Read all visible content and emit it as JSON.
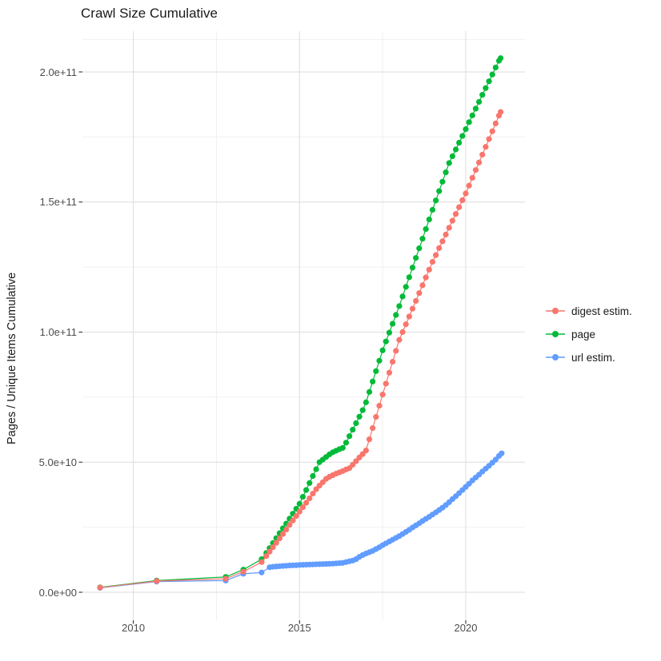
{
  "title": "Crawl Size Cumulative",
  "y_axis_label": "Pages / Unique Items Cumulative",
  "legend": {
    "position": "right",
    "items": [
      {
        "label": "digest estim.",
        "color": "#F8766D"
      },
      {
        "label": "page",
        "color": "#00BA38"
      },
      {
        "label": "url estim.",
        "color": "#619CFF"
      }
    ]
  },
  "chart_data": {
    "type": "line",
    "title": "Crawl Size Cumulative",
    "xlabel": "",
    "ylabel": "Pages / Unique Items Cumulative",
    "grid": true,
    "legend_position": "right",
    "value_unit": "billions (1e9) of pages / unique items",
    "xlim": [
      2008.5,
      2021.8
    ],
    "ylim_billions": [
      -10.7,
      215.6
    ],
    "x_ticks": {
      "labels": [
        "2010",
        "2015",
        "2020"
      ],
      "years": [
        2010,
        2015,
        2020
      ]
    },
    "x_minor_years": [
      2012.5,
      2017.5
    ],
    "y_ticks": {
      "labels": [
        "0.0e+00",
        "5.0e+10",
        "1.0e+11",
        "1.5e+11",
        "2.0e+11"
      ],
      "values_billions": [
        0,
        50,
        100,
        150,
        200
      ]
    },
    "y_minor_billions": [
      25,
      75,
      125,
      175,
      212.5
    ],
    "series": [
      {
        "name": "url estim.",
        "color": "#619CFF",
        "points": [
          [
            2009.0,
            1.7
          ],
          [
            2010.7,
            4.1
          ],
          [
            2012.78,
            4.5
          ],
          [
            2013.31,
            7.1
          ],
          [
            2013.86,
            7.6
          ],
          [
            2014.1,
            9.6
          ],
          [
            2014.2,
            9.8
          ],
          [
            2014.3,
            9.9
          ],
          [
            2014.4,
            10.0
          ],
          [
            2014.5,
            10.1
          ],
          [
            2014.6,
            10.2
          ],
          [
            2014.7,
            10.3
          ],
          [
            2014.8,
            10.35
          ],
          [
            2014.9,
            10.4
          ],
          [
            2015.0,
            10.5
          ],
          [
            2015.1,
            10.55
          ],
          [
            2015.2,
            10.6
          ],
          [
            2015.3,
            10.65
          ],
          [
            2015.4,
            10.7
          ],
          [
            2015.5,
            10.75
          ],
          [
            2015.6,
            10.8
          ],
          [
            2015.7,
            10.85
          ],
          [
            2015.8,
            10.9
          ],
          [
            2015.9,
            10.95
          ],
          [
            2016.0,
            11.0
          ],
          [
            2016.1,
            11.1
          ],
          [
            2016.2,
            11.2
          ],
          [
            2016.3,
            11.3
          ],
          [
            2016.4,
            11.6
          ],
          [
            2016.5,
            11.9
          ],
          [
            2016.6,
            12.2
          ],
          [
            2016.7,
            12.7
          ],
          [
            2016.8,
            13.6
          ],
          [
            2016.9,
            14.3
          ],
          [
            2017.0,
            14.9
          ],
          [
            2017.1,
            15.4
          ],
          [
            2017.2,
            15.9
          ],
          [
            2017.3,
            16.6
          ],
          [
            2017.4,
            17.3
          ],
          [
            2017.5,
            18.1
          ],
          [
            2017.6,
            18.8
          ],
          [
            2017.7,
            19.5
          ],
          [
            2017.8,
            20.2
          ],
          [
            2017.9,
            20.9
          ],
          [
            2018.0,
            21.6
          ],
          [
            2018.1,
            22.4
          ],
          [
            2018.2,
            23.2
          ],
          [
            2018.3,
            24.0
          ],
          [
            2018.4,
            24.9
          ],
          [
            2018.5,
            25.7
          ],
          [
            2018.6,
            26.5
          ],
          [
            2018.7,
            27.4
          ],
          [
            2018.8,
            28.2
          ],
          [
            2018.9,
            29.0
          ],
          [
            2019.0,
            29.9
          ],
          [
            2019.1,
            30.7
          ],
          [
            2019.2,
            31.6
          ],
          [
            2019.3,
            32.5
          ],
          [
            2019.4,
            33.5
          ],
          [
            2019.5,
            34.6
          ],
          [
            2019.6,
            35.8
          ],
          [
            2019.7,
            36.9
          ],
          [
            2019.8,
            38.1
          ],
          [
            2019.9,
            39.3
          ],
          [
            2020.0,
            40.5
          ],
          [
            2020.1,
            41.7
          ],
          [
            2020.2,
            43.0
          ],
          [
            2020.3,
            44.1
          ],
          [
            2020.4,
            45.2
          ],
          [
            2020.5,
            46.4
          ],
          [
            2020.6,
            47.5
          ],
          [
            2020.7,
            48.6
          ],
          [
            2020.8,
            49.8
          ],
          [
            2020.9,
            51.0
          ],
          [
            2021.0,
            52.4
          ],
          [
            2021.08,
            53.4
          ]
        ]
      },
      {
        "name": "page",
        "color": "#00BA38",
        "points": [
          [
            2009.0,
            1.9
          ],
          [
            2010.7,
            4.5
          ],
          [
            2012.78,
            5.9
          ],
          [
            2013.31,
            8.7
          ],
          [
            2013.86,
            12.7
          ],
          [
            2014.0,
            15.1
          ],
          [
            2014.1,
            17.0
          ],
          [
            2014.2,
            18.9
          ],
          [
            2014.3,
            20.8
          ],
          [
            2014.4,
            22.7
          ],
          [
            2014.5,
            24.6
          ],
          [
            2014.6,
            26.4
          ],
          [
            2014.7,
            28.3
          ],
          [
            2014.8,
            30.2
          ],
          [
            2014.9,
            32.1
          ],
          [
            2015.0,
            34.0
          ],
          [
            2015.1,
            36.7
          ],
          [
            2015.2,
            39.3
          ],
          [
            2015.3,
            42.0
          ],
          [
            2015.4,
            44.7
          ],
          [
            2015.5,
            47.3
          ],
          [
            2015.6,
            50.0
          ],
          [
            2015.7,
            51.0
          ],
          [
            2015.8,
            52.0
          ],
          [
            2015.9,
            53.0
          ],
          [
            2016.0,
            53.8
          ],
          [
            2016.1,
            54.4
          ],
          [
            2016.2,
            55.0
          ],
          [
            2016.3,
            55.5
          ],
          [
            2016.4,
            57.5
          ],
          [
            2016.5,
            60.0
          ],
          [
            2016.6,
            62.5
          ],
          [
            2016.7,
            65.0
          ],
          [
            2016.8,
            67.5
          ],
          [
            2016.9,
            70.0
          ],
          [
            2017.0,
            73.0
          ],
          [
            2017.1,
            77.0
          ],
          [
            2017.2,
            81.0
          ],
          [
            2017.3,
            85.0
          ],
          [
            2017.4,
            89.0
          ],
          [
            2017.5,
            93.0
          ],
          [
            2017.6,
            96.4
          ],
          [
            2017.7,
            99.8
          ],
          [
            2017.8,
            103.2
          ],
          [
            2017.9,
            106.6
          ],
          [
            2018.0,
            110.0
          ],
          [
            2018.1,
            113.7
          ],
          [
            2018.2,
            117.4
          ],
          [
            2018.3,
            121.1
          ],
          [
            2018.4,
            124.8
          ],
          [
            2018.5,
            128.5
          ],
          [
            2018.6,
            132.2
          ],
          [
            2018.7,
            135.9
          ],
          [
            2018.8,
            139.6
          ],
          [
            2018.9,
            143.3
          ],
          [
            2019.0,
            147.0
          ],
          [
            2019.1,
            150.6
          ],
          [
            2019.2,
            154.2
          ],
          [
            2019.3,
            157.8
          ],
          [
            2019.4,
            161.4
          ],
          [
            2019.5,
            165.0
          ],
          [
            2019.6,
            167.6
          ],
          [
            2019.7,
            170.2
          ],
          [
            2019.8,
            172.8
          ],
          [
            2019.9,
            175.4
          ],
          [
            2020.0,
            178.0
          ],
          [
            2020.1,
            180.7
          ],
          [
            2020.2,
            183.3
          ],
          [
            2020.3,
            185.9
          ],
          [
            2020.4,
            188.5
          ],
          [
            2020.5,
            191.2
          ],
          [
            2020.6,
            193.8
          ],
          [
            2020.7,
            196.4
          ],
          [
            2020.8,
            199.0
          ],
          [
            2020.9,
            201.7
          ],
          [
            2021.0,
            204.3
          ],
          [
            2021.05,
            205.3
          ]
        ]
      },
      {
        "name": "digest estim.",
        "color": "#F8766D",
        "points": [
          [
            2009.0,
            1.8
          ],
          [
            2010.7,
            4.3
          ],
          [
            2012.78,
            5.2
          ],
          [
            2013.31,
            7.9
          ],
          [
            2013.86,
            11.6
          ],
          [
            2014.0,
            13.9
          ],
          [
            2014.1,
            15.6
          ],
          [
            2014.2,
            17.3
          ],
          [
            2014.3,
            19.0
          ],
          [
            2014.4,
            20.7
          ],
          [
            2014.5,
            22.4
          ],
          [
            2014.6,
            24.1
          ],
          [
            2014.7,
            25.9
          ],
          [
            2014.8,
            27.6
          ],
          [
            2014.9,
            29.3
          ],
          [
            2015.0,
            31.0
          ],
          [
            2015.1,
            32.7
          ],
          [
            2015.2,
            34.4
          ],
          [
            2015.3,
            36.1
          ],
          [
            2015.4,
            37.9
          ],
          [
            2015.5,
            39.6
          ],
          [
            2015.6,
            41.0
          ],
          [
            2015.7,
            42.3
          ],
          [
            2015.8,
            43.6
          ],
          [
            2015.9,
            44.4
          ],
          [
            2016.0,
            45.0
          ],
          [
            2016.1,
            45.6
          ],
          [
            2016.2,
            46.1
          ],
          [
            2016.3,
            46.6
          ],
          [
            2016.4,
            47.2
          ],
          [
            2016.5,
            47.7
          ],
          [
            2016.6,
            49.0
          ],
          [
            2016.7,
            50.4
          ],
          [
            2016.8,
            51.8
          ],
          [
            2016.9,
            53.1
          ],
          [
            2017.0,
            54.5
          ],
          [
            2017.1,
            58.8
          ],
          [
            2017.2,
            63.1
          ],
          [
            2017.3,
            67.4
          ],
          [
            2017.4,
            71.7
          ],
          [
            2017.5,
            76.0
          ],
          [
            2017.6,
            80.2
          ],
          [
            2017.7,
            84.4
          ],
          [
            2017.8,
            88.6
          ],
          [
            2017.9,
            92.8
          ],
          [
            2018.0,
            97.0
          ],
          [
            2018.1,
            100.0
          ],
          [
            2018.2,
            103.0
          ],
          [
            2018.3,
            106.0
          ],
          [
            2018.4,
            109.0
          ],
          [
            2018.5,
            112.0
          ],
          [
            2018.6,
            115.0
          ],
          [
            2018.7,
            118.0
          ],
          [
            2018.8,
            121.0
          ],
          [
            2018.9,
            124.0
          ],
          [
            2019.0,
            127.0
          ],
          [
            2019.1,
            129.6
          ],
          [
            2019.2,
            132.3
          ],
          [
            2019.3,
            134.9
          ],
          [
            2019.4,
            137.5
          ],
          [
            2019.5,
            140.1
          ],
          [
            2019.6,
            142.8
          ],
          [
            2019.7,
            145.4
          ],
          [
            2019.8,
            148.0
          ],
          [
            2019.9,
            150.7
          ],
          [
            2020.0,
            153.3
          ],
          [
            2020.1,
            156.3
          ],
          [
            2020.2,
            159.3
          ],
          [
            2020.3,
            162.3
          ],
          [
            2020.4,
            165.2
          ],
          [
            2020.5,
            168.2
          ],
          [
            2020.6,
            171.2
          ],
          [
            2020.7,
            174.2
          ],
          [
            2020.8,
            177.2
          ],
          [
            2020.9,
            180.2
          ],
          [
            2021.0,
            183.2
          ],
          [
            2021.05,
            184.6
          ]
        ]
      }
    ]
  }
}
